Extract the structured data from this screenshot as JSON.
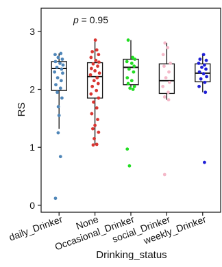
{
  "chart_data": {
    "type": "scatter",
    "subtype": "box-with-jitter",
    "xlabel": "Drinking_status",
    "ylabel": "RS",
    "ylim": [
      -0.12,
      3.4
    ],
    "yticks": [
      0,
      1,
      2,
      3
    ],
    "categories": [
      "daily_Drinker",
      "None",
      "Occasional_Drinker",
      "social_Drinker",
      "weekly_Drinker"
    ],
    "annotation": {
      "p_symbol": "p",
      "p_text": " = 0.95"
    },
    "grid": false,
    "legend": "none",
    "series": [
      {
        "category": "daily_Drinker",
        "color": "#4f86b8",
        "box": {
          "q1": 1.98,
          "median": 2.36,
          "q3": 2.48,
          "whisker_low": 1.32,
          "whisker_high": 2.62
        },
        "points": [
          {
            "dx": -0.22,
            "y": 2.6
          },
          {
            "dx": 0.1,
            "y": 2.62
          },
          {
            "dx": -0.05,
            "y": 2.55
          },
          {
            "dx": 0.18,
            "y": 2.52
          },
          {
            "dx": -0.2,
            "y": 2.48
          },
          {
            "dx": 0.05,
            "y": 2.45
          },
          {
            "dx": 0.22,
            "y": 2.42
          },
          {
            "dx": -0.12,
            "y": 2.38
          },
          {
            "dx": 0.14,
            "y": 2.35
          },
          {
            "dx": -0.25,
            "y": 2.3
          },
          {
            "dx": 0.2,
            "y": 2.28
          },
          {
            "dx": -0.08,
            "y": 2.2
          },
          {
            "dx": 0.12,
            "y": 2.15
          },
          {
            "dx": -0.18,
            "y": 2.08
          },
          {
            "dx": 0.08,
            "y": 2.02
          },
          {
            "dx": -0.1,
            "y": 1.95
          },
          {
            "dx": 0.16,
            "y": 1.85
          },
          {
            "dx": -0.04,
            "y": 1.7
          },
          {
            "dx": 0.0,
            "y": 1.55
          },
          {
            "dx": -0.05,
            "y": 1.25
          },
          {
            "dx": 0.08,
            "y": 0.84
          },
          {
            "dx": -0.2,
            "y": 0.12
          }
        ]
      },
      {
        "category": "None",
        "color": "#d93632",
        "box": {
          "q1": 1.85,
          "median": 2.22,
          "q3": 2.46,
          "whisker_low": 1.05,
          "whisker_high": 2.85
        },
        "points": [
          {
            "dx": 0.02,
            "y": 2.85
          },
          {
            "dx": 0.1,
            "y": 2.68
          },
          {
            "dx": -0.15,
            "y": 2.65
          },
          {
            "dx": 0.2,
            "y": 2.6
          },
          {
            "dx": -0.22,
            "y": 2.55
          },
          {
            "dx": 0.05,
            "y": 2.5
          },
          {
            "dx": 0.22,
            "y": 2.47
          },
          {
            "dx": -0.1,
            "y": 2.44
          },
          {
            "dx": 0.15,
            "y": 2.4
          },
          {
            "dx": -0.2,
            "y": 2.36
          },
          {
            "dx": 0.0,
            "y": 2.32
          },
          {
            "dx": 0.25,
            "y": 2.28
          },
          {
            "dx": -0.25,
            "y": 2.25
          },
          {
            "dx": 0.12,
            "y": 2.2
          },
          {
            "dx": -0.05,
            "y": 2.15
          },
          {
            "dx": 0.18,
            "y": 2.1
          },
          {
            "dx": -0.15,
            "y": 2.05
          },
          {
            "dx": 0.08,
            "y": 1.98
          },
          {
            "dx": -0.22,
            "y": 1.92
          },
          {
            "dx": 0.2,
            "y": 1.85
          },
          {
            "dx": -0.08,
            "y": 1.78
          },
          {
            "dx": 0.1,
            "y": 1.68
          },
          {
            "dx": -0.18,
            "y": 1.58
          },
          {
            "dx": 0.15,
            "y": 1.48
          },
          {
            "dx": 0.0,
            "y": 1.38
          },
          {
            "dx": -0.12,
            "y": 1.32
          },
          {
            "dx": 0.2,
            "y": 1.26
          },
          {
            "dx": -0.04,
            "y": 1.15
          },
          {
            "dx": 0.1,
            "y": 1.05
          },
          {
            "dx": -0.1,
            "y": 1.04
          }
        ]
      },
      {
        "category": "Occasional_Drinker",
        "color": "#22dd22",
        "box": {
          "q1": 2.08,
          "median": 2.38,
          "q3": 2.52,
          "whisker_low": 2.0,
          "whisker_high": 2.85
        },
        "points": [
          {
            "dx": -0.15,
            "y": 2.85
          },
          {
            "dx": 0.1,
            "y": 2.55
          },
          {
            "dx": 0.22,
            "y": 2.52
          },
          {
            "dx": -0.22,
            "y": 2.48
          },
          {
            "dx": 0.05,
            "y": 2.45
          },
          {
            "dx": 0.18,
            "y": 2.4
          },
          {
            "dx": -0.1,
            "y": 2.35
          },
          {
            "dx": 0.15,
            "y": 2.3
          },
          {
            "dx": -0.2,
            "y": 2.2
          },
          {
            "dx": 0.05,
            "y": 2.15
          },
          {
            "dx": -0.15,
            "y": 2.1
          },
          {
            "dx": 0.2,
            "y": 2.05
          },
          {
            "dx": -0.05,
            "y": 2.02
          },
          {
            "dx": 0.12,
            "y": 2.0
          },
          {
            "dx": -0.2,
            "y": 0.97
          },
          {
            "dx": -0.08,
            "y": 0.68
          }
        ]
      },
      {
        "category": "social_Drinker",
        "color": "#f4b8c8",
        "box": {
          "q1": 1.93,
          "median": 2.15,
          "q3": 2.44,
          "whisker_low": 1.82,
          "whisker_high": 2.8
        },
        "points": [
          {
            "dx": -0.1,
            "y": 2.8
          },
          {
            "dx": 0.05,
            "y": 2.72
          },
          {
            "dx": -0.2,
            "y": 2.6
          },
          {
            "dx": 0.2,
            "y": 2.45
          },
          {
            "dx": -0.15,
            "y": 2.4
          },
          {
            "dx": 0.12,
            "y": 2.3
          },
          {
            "dx": -0.05,
            "y": 2.2
          },
          {
            "dx": 0.15,
            "y": 2.12
          },
          {
            "dx": -0.22,
            "y": 2.05
          },
          {
            "dx": 0.08,
            "y": 1.95
          },
          {
            "dx": -0.12,
            "y": 1.87
          },
          {
            "dx": 0.1,
            "y": 1.82
          },
          {
            "dx": -0.12,
            "y": 0.53
          }
        ]
      },
      {
        "category": "weekly_Drinker",
        "color": "#1f1fd6",
        "box": {
          "q1": 2.13,
          "median": 2.28,
          "q3": 2.44,
          "whisker_low": 1.95,
          "whisker_high": 2.6
        },
        "points": [
          {
            "dx": 0.05,
            "y": 2.6
          },
          {
            "dx": -0.15,
            "y": 2.52
          },
          {
            "dx": 0.2,
            "y": 2.5
          },
          {
            "dx": -0.22,
            "y": 2.45
          },
          {
            "dx": 0.1,
            "y": 2.42
          },
          {
            "dx": -0.05,
            "y": 2.38
          },
          {
            "dx": 0.18,
            "y": 2.35
          },
          {
            "dx": -0.18,
            "y": 2.3
          },
          {
            "dx": 0.05,
            "y": 2.27
          },
          {
            "dx": 0.22,
            "y": 2.22
          },
          {
            "dx": -0.1,
            "y": 2.18
          },
          {
            "dx": 0.12,
            "y": 2.12
          },
          {
            "dx": -0.2,
            "y": 2.05
          },
          {
            "dx": 0.15,
            "y": 1.95
          },
          {
            "dx": 0.1,
            "y": 0.74
          }
        ]
      }
    ]
  }
}
